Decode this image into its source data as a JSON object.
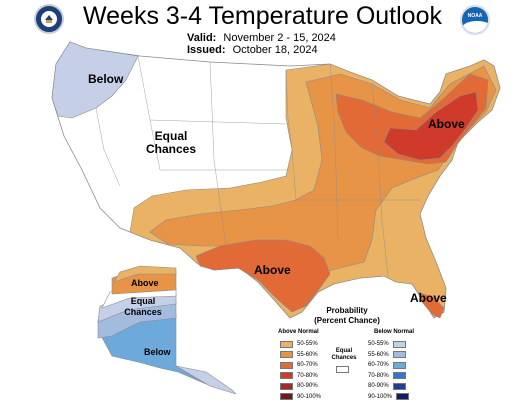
{
  "header": {
    "title": "Weeks 3-4 Temperature Outlook",
    "valid_label": "Valid:",
    "valid_value": "November 2 - 15, 2024",
    "issued_label": "Issued:",
    "issued_value": "October 18, 2024"
  },
  "logos": {
    "left": "doc-seal-icon",
    "right": "noaa-logo-icon",
    "right_text": "NOAA"
  },
  "labels": {
    "below_nw": "Below",
    "equal_center": "Equal Chances",
    "above_ne": "Above",
    "above_tx": "Above",
    "above_fl": "Above",
    "ak_above": "Above",
    "ak_equal": "Equal Chances",
    "ak_below": "Below"
  },
  "legend": {
    "title_line1": "Probability",
    "title_line2": "(Percent Chance)",
    "above_header": "Above Normal",
    "below_header": "Below Normal",
    "equal_line1": "Equal",
    "equal_line2": "Chances",
    "above_items": [
      {
        "label": "50-55%",
        "color": "#e9b265"
      },
      {
        "label": "55-60%",
        "color": "#e89447"
      },
      {
        "label": "60-70%",
        "color": "#e26a37"
      },
      {
        "label": "70-80%",
        "color": "#cf3a2a"
      },
      {
        "label": "80-90%",
        "color": "#a32a26"
      },
      {
        "label": "90-100%",
        "color": "#6e1a1d"
      }
    ],
    "below_items": [
      {
        "label": "50-55%",
        "color": "#c5cfe8"
      },
      {
        "label": "55-60%",
        "color": "#a4bbe0"
      },
      {
        "label": "60-70%",
        "color": "#6ea9dc"
      },
      {
        "label": "70-80%",
        "color": "#3575c4"
      },
      {
        "label": "80-90%",
        "color": "#1f3f95"
      },
      {
        "label": "90-100%",
        "color": "#161a5e"
      }
    ]
  },
  "colors": {
    "above_50": "#e9b265",
    "above_55": "#e89447",
    "above_60": "#e26a37",
    "above_70": "#cf3a2a",
    "below_50": "#c5cfe8",
    "below_55": "#a4bbe0",
    "below_60": "#6ea9dc",
    "equal": "#ffffff",
    "border": "#8a8a8a"
  }
}
